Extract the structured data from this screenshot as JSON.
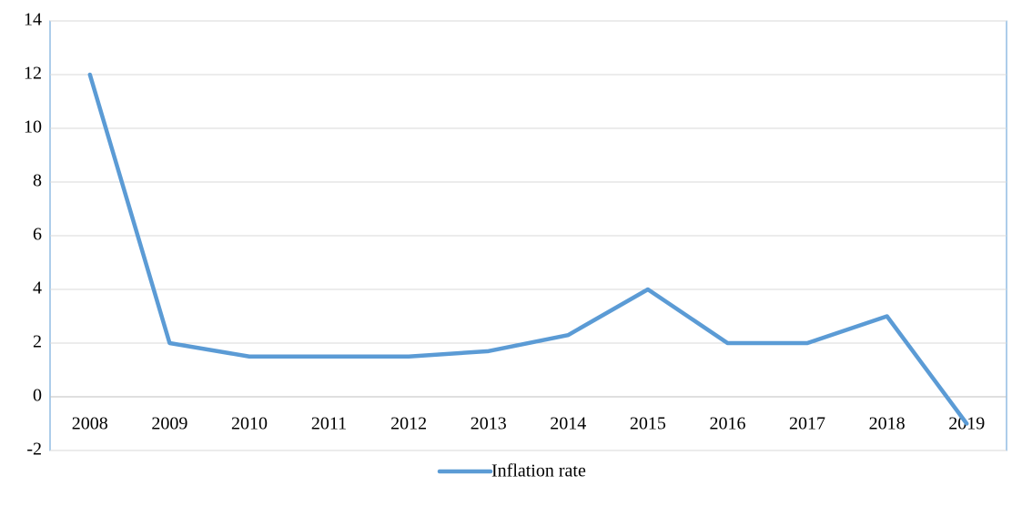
{
  "chart_data": {
    "type": "line",
    "categories": [
      "2008",
      "2009",
      "2010",
      "2011",
      "2012",
      "2013",
      "2014",
      "2015",
      "2016",
      "2017",
      "2018",
      "2019"
    ],
    "series": [
      {
        "name": "Inflation rate",
        "color": "#5b9bd5",
        "values": [
          12,
          2,
          1.5,
          1.5,
          1.5,
          1.7,
          2.3,
          4,
          2,
          2,
          3,
          -1
        ]
      }
    ],
    "ylim": [
      -2,
      14
    ],
    "yticks": [
      -2,
      0,
      2,
      4,
      6,
      8,
      10,
      12,
      14
    ],
    "grid": true,
    "legend": "bottom"
  }
}
